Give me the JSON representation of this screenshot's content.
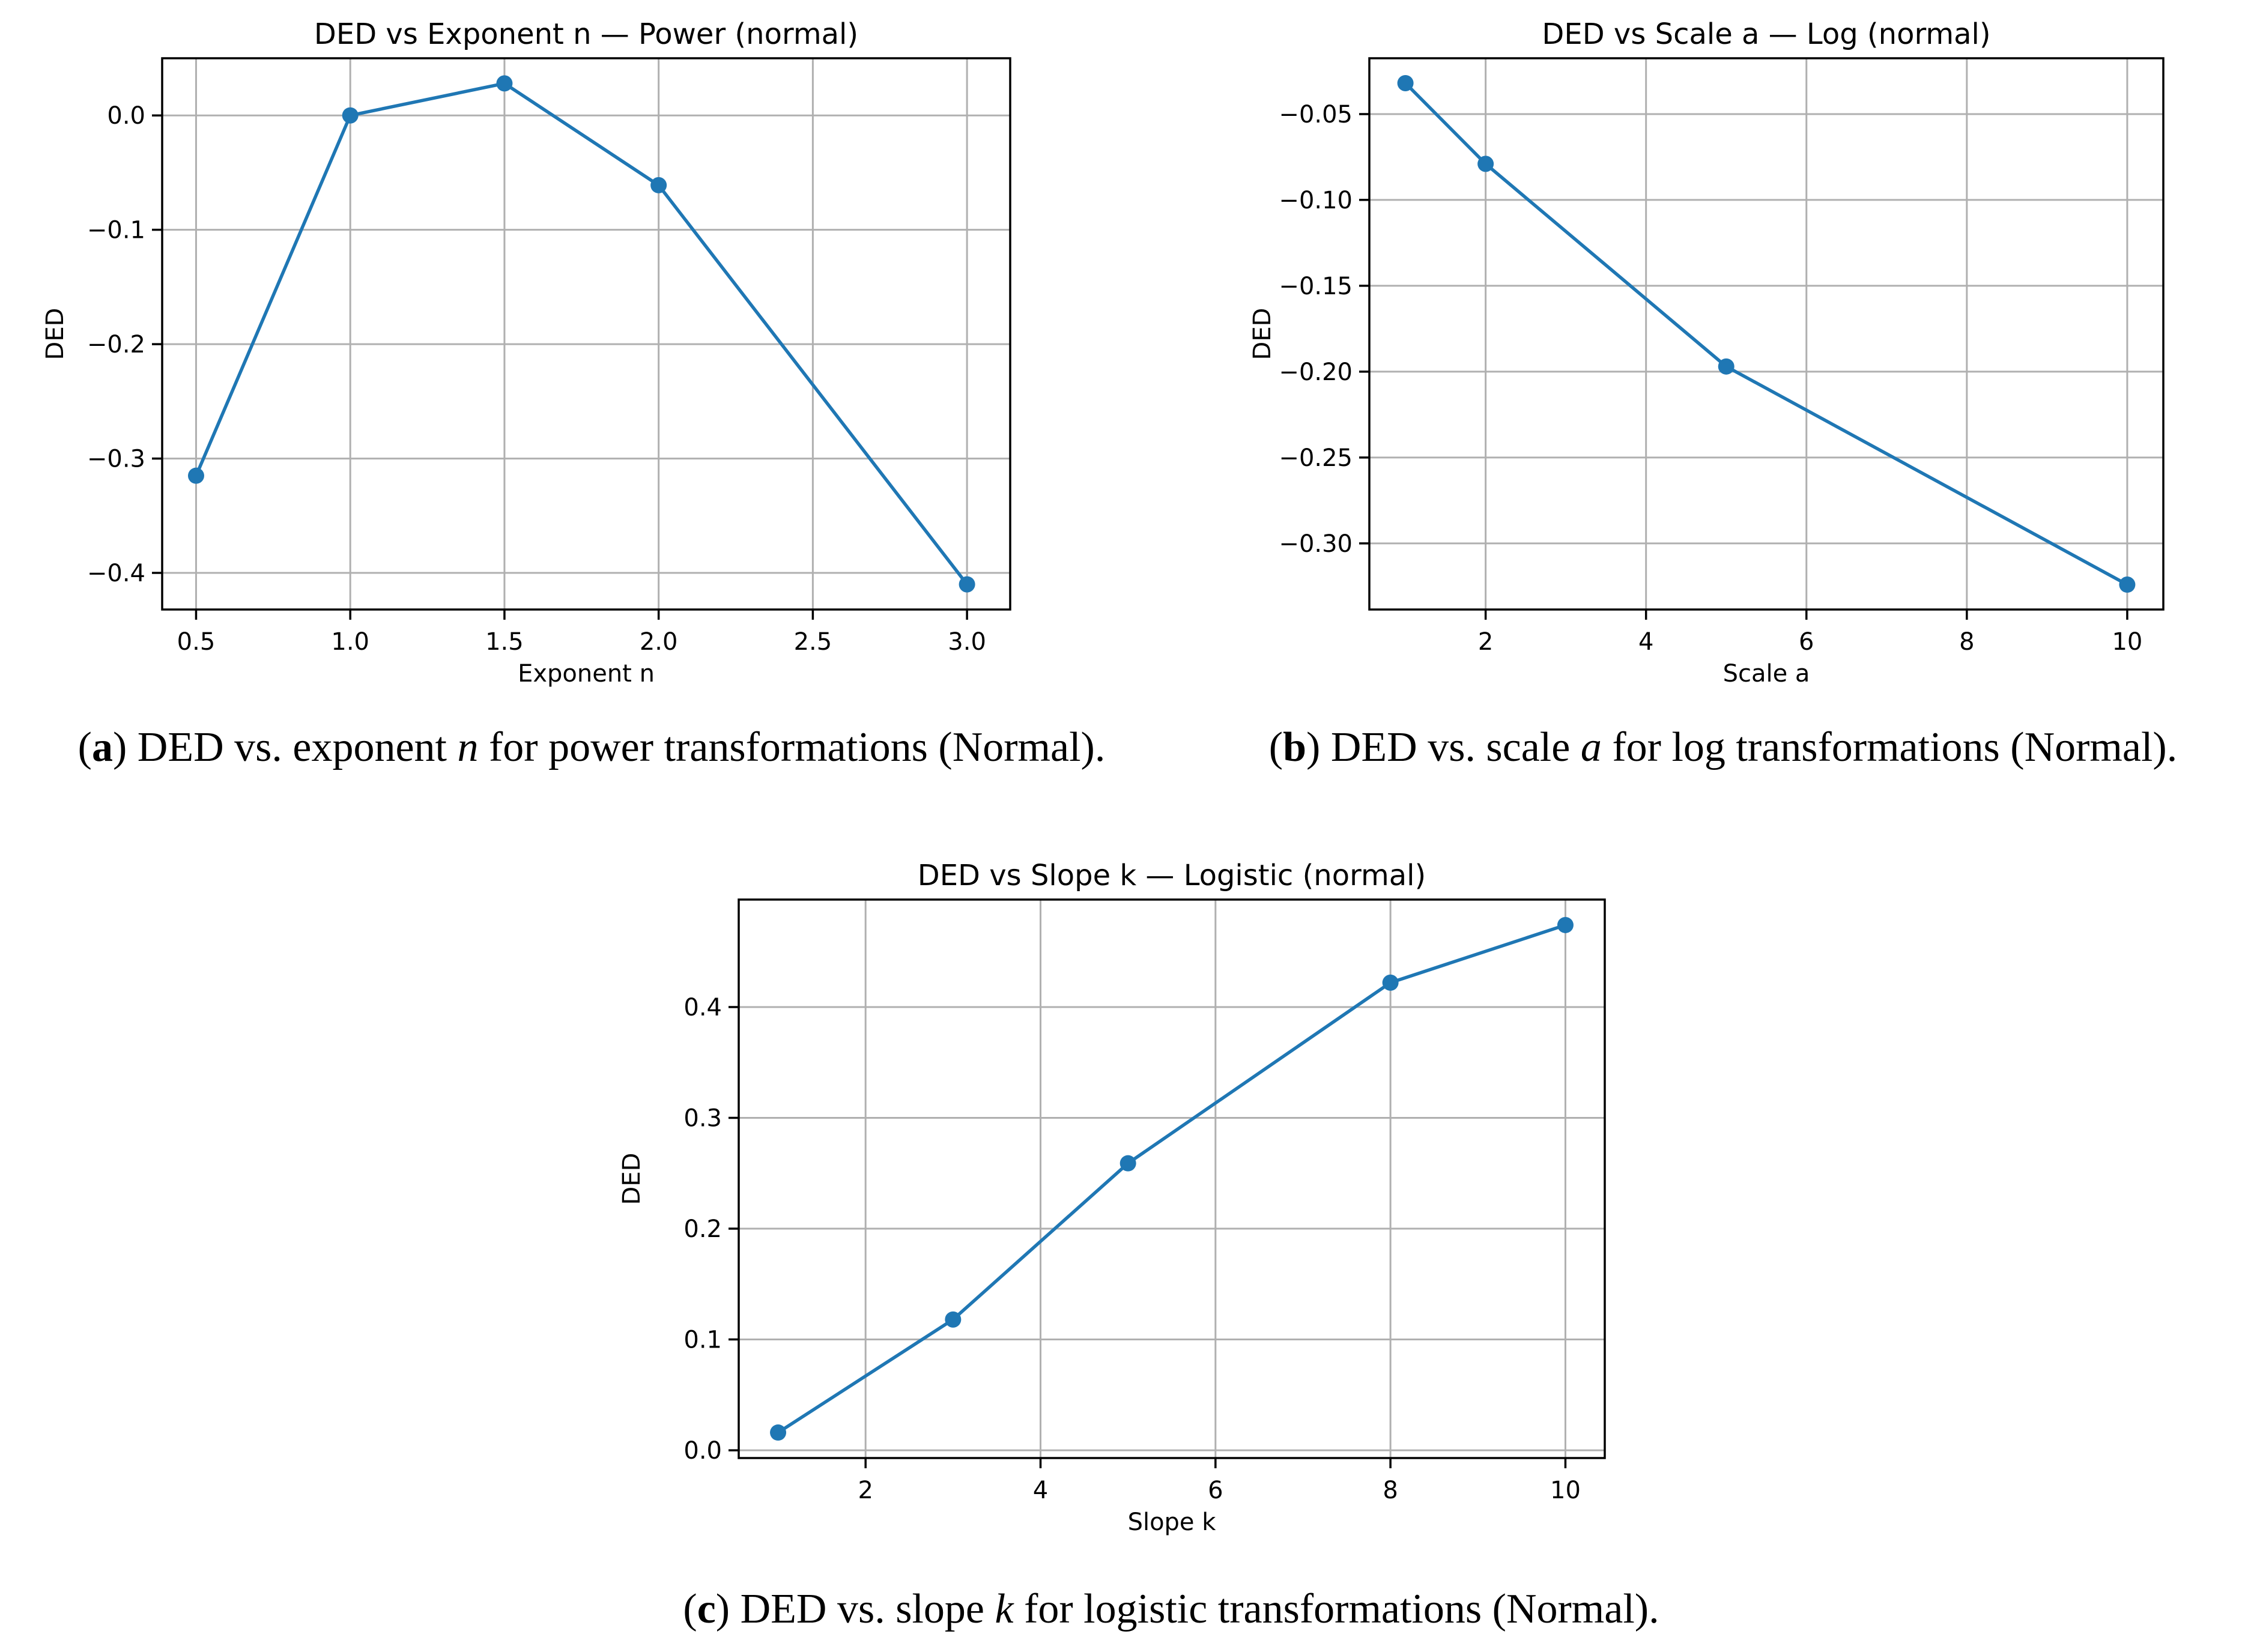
{
  "chart_data": [
    {
      "type": "line",
      "title": "DED vs Exponent n — Power (normal)",
      "xlabel": "Exponent n",
      "ylabel": "DED",
      "x": [
        0.5,
        1.0,
        1.5,
        2.0,
        3.0
      ],
      "y": [
        -0.315,
        0.0,
        0.028,
        -0.061,
        -0.41
      ],
      "xlim": [
        0.39,
        3.14
      ],
      "ylim": [
        -0.432,
        0.05
      ],
      "xticks": [
        0.5,
        1.0,
        1.5,
        2.0,
        2.5,
        3.0
      ],
      "xtick_labels": [
        "0.5",
        "1.0",
        "1.5",
        "2.0",
        "2.5",
        "3.0"
      ],
      "yticks": [
        0.0,
        -0.1,
        -0.2,
        -0.3,
        -0.4
      ],
      "ytick_labels": [
        "0.0",
        "−0.1",
        "−0.2",
        "−0.3",
        "−0.4"
      ],
      "grid": true,
      "color": "#1f77b4"
    },
    {
      "type": "line",
      "title": "DED vs Scale a — Log (normal)",
      "xlabel": "Scale a",
      "ylabel": "DED",
      "x": [
        1,
        2,
        5,
        10
      ],
      "y": [
        -0.032,
        -0.079,
        -0.197,
        -0.324
      ],
      "xlim": [
        0.55,
        10.45
      ],
      "ylim": [
        -0.3385,
        -0.0175
      ],
      "xticks": [
        2,
        4,
        6,
        8,
        10
      ],
      "xtick_labels": [
        "2",
        "4",
        "6",
        "8",
        "10"
      ],
      "yticks": [
        -0.05,
        -0.1,
        -0.15,
        -0.2,
        -0.25,
        -0.3
      ],
      "ytick_labels": [
        "−0.05",
        "−0.10",
        "−0.15",
        "−0.20",
        "−0.25",
        "−0.30"
      ],
      "grid": true,
      "color": "#1f77b4"
    },
    {
      "type": "line",
      "title": "DED vs Slope k — Logistic (normal)",
      "xlabel": "Slope k",
      "ylabel": "DED",
      "x": [
        1,
        3,
        5,
        8,
        10
      ],
      "y": [
        0.016,
        0.118,
        0.259,
        0.422,
        0.474
      ],
      "xlim": [
        0.55,
        10.45
      ],
      "ylim": [
        -0.007,
        0.497
      ],
      "xticks": [
        2,
        4,
        6,
        8,
        10
      ],
      "xtick_labels": [
        "2",
        "4",
        "6",
        "8",
        "10"
      ],
      "yticks": [
        0.0,
        0.1,
        0.2,
        0.3,
        0.4
      ],
      "ytick_labels": [
        "0.0",
        "0.1",
        "0.2",
        "0.3",
        "0.4"
      ],
      "grid": true,
      "color": "#1f77b4"
    }
  ],
  "captions": [
    {
      "letter": "a",
      "open": "(",
      "close": ")",
      "pre": "DED vs. exponent ",
      "var": "n",
      "post": " for power transformations (Normal)."
    },
    {
      "letter": "b",
      "open": "(",
      "close": ")",
      "pre": "DED vs. scale ",
      "var": "a",
      "post": " for log transformations (Normal)."
    },
    {
      "letter": "c",
      "open": "(",
      "close": ")",
      "pre": "DED vs. slope ",
      "var": "k",
      "post": " for logistic transformations (Normal)."
    }
  ]
}
